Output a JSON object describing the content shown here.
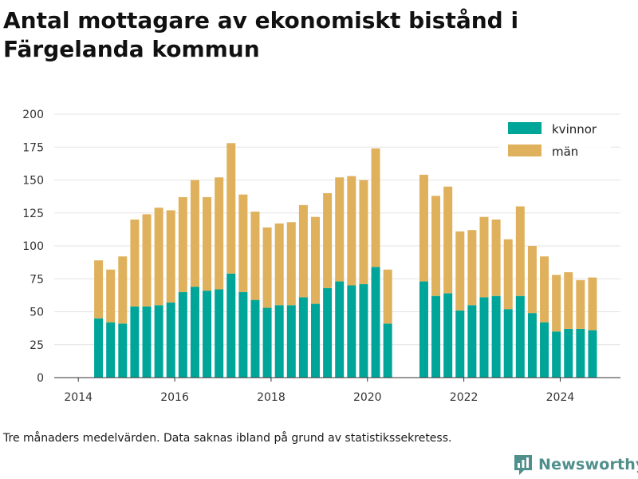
{
  "title": "Antal mottagare av ekonomiskt bistånd i Färgelanda kommun",
  "note": "Tre månaders medelvärden. Data saknas ibland på grund av statistikssekretess.",
  "brand": {
    "name": "Newsworthy"
  },
  "colors": {
    "kvinnor": "#00a599",
    "man": "#dfb15c",
    "grid": "#e3e3e3",
    "axis": "#333333",
    "brand": "#4f8f8c"
  },
  "chart_data": {
    "type": "bar",
    "stacked": true,
    "title": "Antal mottagare av ekonomiskt bistånd i Färgelanda kommun",
    "xlabel": "",
    "ylabel": "",
    "ylim": [
      0,
      200
    ],
    "yticks": [
      0,
      25,
      50,
      75,
      100,
      125,
      150,
      175,
      200
    ],
    "xlim": [
      2013.5,
      2025.25
    ],
    "xticks": [
      2014,
      2016,
      2018,
      2020,
      2022,
      2024
    ],
    "grid": true,
    "legend_position": "top-right",
    "x": [
      2014.42,
      2014.67,
      2014.92,
      2015.17,
      2015.42,
      2015.67,
      2015.92,
      2016.17,
      2016.42,
      2016.67,
      2016.92,
      2017.17,
      2017.42,
      2017.67,
      2017.92,
      2018.17,
      2018.42,
      2018.67,
      2018.92,
      2019.17,
      2019.42,
      2019.67,
      2019.92,
      2020.17,
      2020.42,
      2021.17,
      2021.42,
      2021.67,
      2021.92,
      2022.17,
      2022.42,
      2022.67,
      2022.92,
      2023.17,
      2023.42,
      2023.67,
      2023.92,
      2024.17,
      2024.42,
      2024.67
    ],
    "series": [
      {
        "name": "kvinnor",
        "color": "#00a599",
        "values": [
          45,
          42,
          41,
          54,
          54,
          55,
          57,
          65,
          69,
          66,
          67,
          79,
          65,
          59,
          53,
          55,
          55,
          61,
          56,
          68,
          73,
          70,
          71,
          84,
          41,
          73,
          62,
          64,
          51,
          55,
          61,
          62,
          52,
          62,
          49,
          42,
          35,
          37,
          37,
          36
        ]
      },
      {
        "name": "män",
        "color": "#dfb15c",
        "values": [
          44,
          40,
          51,
          66,
          70,
          74,
          70,
          72,
          81,
          71,
          85,
          99,
          74,
          67,
          61,
          62,
          63,
          70,
          66,
          72,
          79,
          83,
          79,
          90,
          41,
          81,
          76,
          81,
          60,
          57,
          61,
          58,
          53,
          68,
          51,
          50,
          43,
          43,
          37,
          40
        ]
      }
    ]
  }
}
